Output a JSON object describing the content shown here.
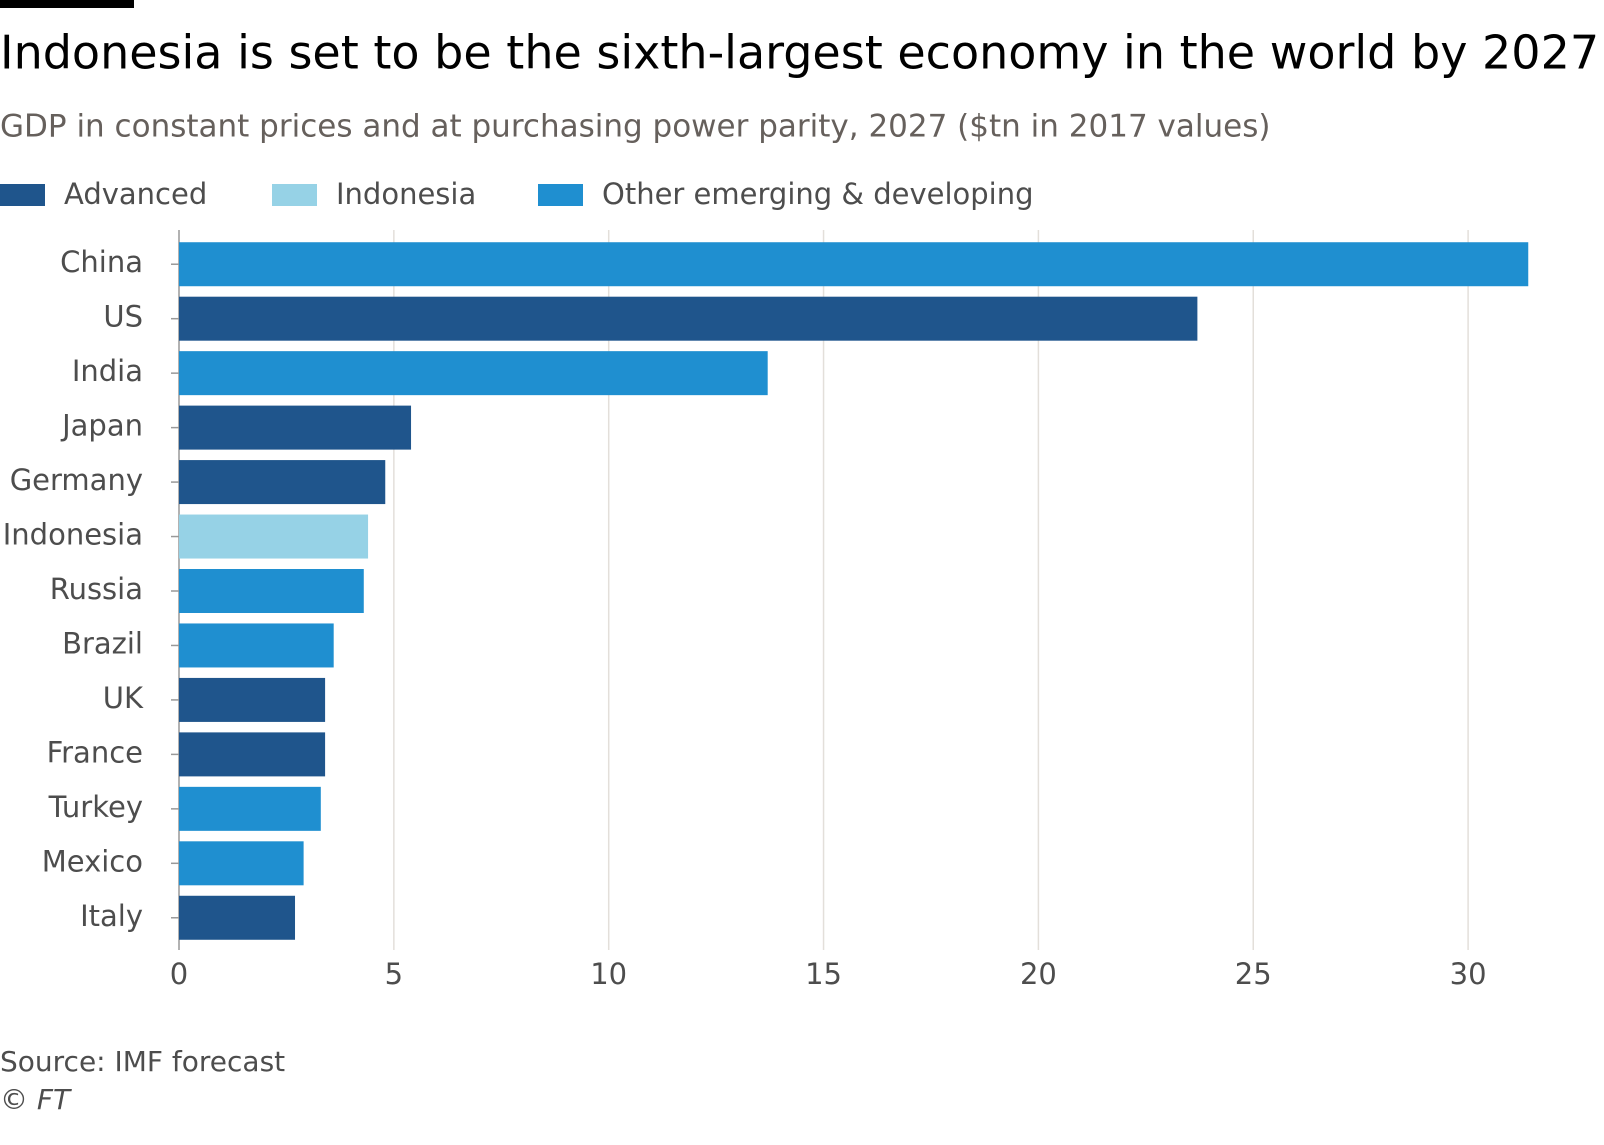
{
  "chart_data": {
    "type": "bar",
    "orientation": "horizontal",
    "title": "Indonesia is set to be the sixth-largest economy in the world by 2027",
    "subtitle": "GDP in constant prices and at purchasing power parity, 2027 ($tn in 2017 values)",
    "source": "Source: IMF forecast",
    "copyright": "© FT",
    "categories": [
      "China",
      "US",
      "India",
      "Japan",
      "Germany",
      "Indonesia",
      "Russia",
      "Brazil",
      "UK",
      "France",
      "Turkey",
      "Mexico",
      "Italy"
    ],
    "series": [
      {
        "name": "Advanced",
        "color": "#1f558c",
        "values": [
          null,
          23.7,
          null,
          5.4,
          4.8,
          null,
          null,
          null,
          3.4,
          3.4,
          null,
          null,
          2.7
        ]
      },
      {
        "name": "Indonesia",
        "color": "#96d2e6",
        "values": [
          null,
          null,
          null,
          null,
          null,
          4.4,
          null,
          null,
          null,
          null,
          null,
          null,
          null
        ]
      },
      {
        "name": "Other emerging & developing",
        "color": "#1f8fd0",
        "values": [
          31.4,
          null,
          13.7,
          null,
          null,
          null,
          4.3,
          3.6,
          null,
          null,
          3.3,
          2.9,
          null
        ]
      }
    ],
    "xlim": [
      0,
      31.5
    ],
    "xticks": [
      0,
      5,
      10,
      15,
      20,
      25,
      30
    ],
    "grid": true
  }
}
